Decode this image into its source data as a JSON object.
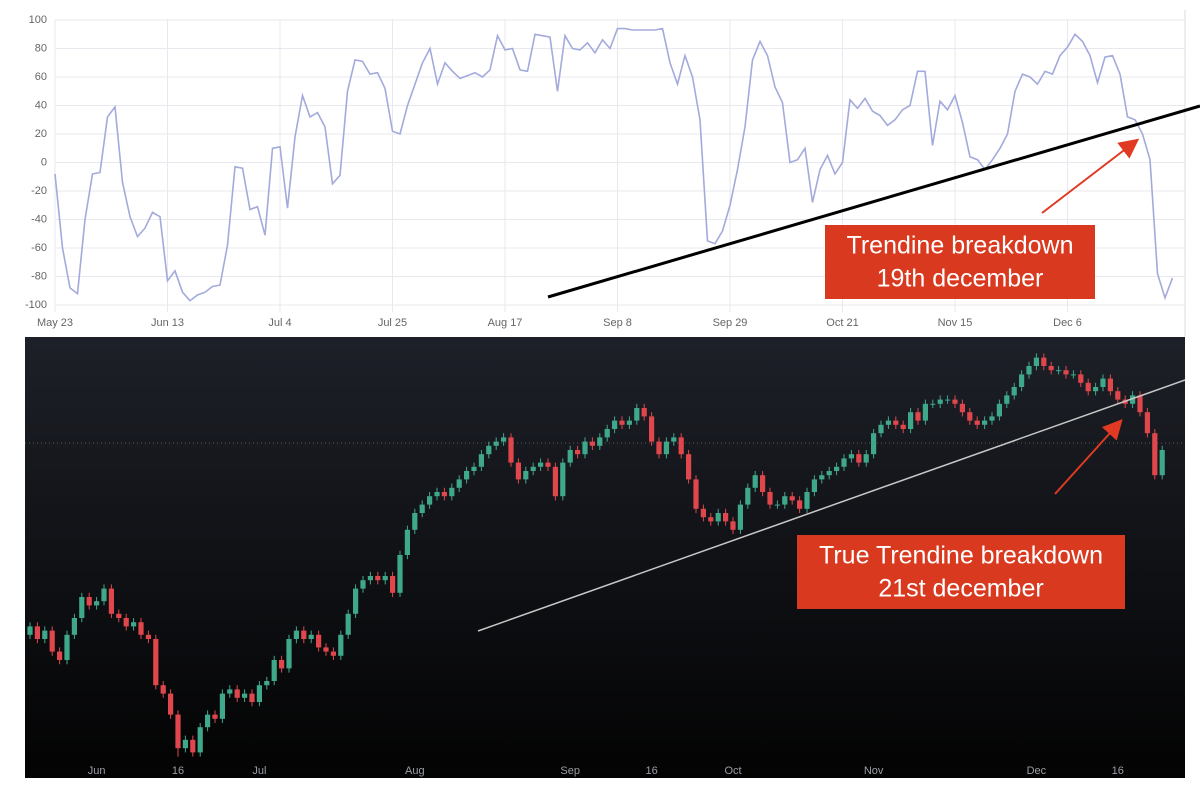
{
  "chart_data": [
    {
      "type": "line",
      "categories": [
        "May 23",
        null,
        null,
        null,
        null,
        null,
        null,
        null,
        null,
        null,
        null,
        null,
        null,
        null,
        null,
        "Jun 13",
        null,
        null,
        null,
        null,
        null,
        null,
        null,
        null,
        null,
        null,
        null,
        null,
        null,
        null,
        "Jul 4",
        null,
        null,
        null,
        null,
        null,
        null,
        null,
        null,
        null,
        null,
        null,
        null,
        null,
        null,
        "Jul 25",
        null,
        null,
        null,
        null,
        null,
        null,
        null,
        null,
        null,
        null,
        null,
        null,
        null,
        null,
        "Aug 17",
        null,
        null,
        null,
        null,
        null,
        null,
        null,
        null,
        null,
        null,
        null,
        null,
        null,
        null,
        "Sep 8",
        null,
        null,
        null,
        null,
        null,
        null,
        null,
        null,
        null,
        null,
        null,
        null,
        null,
        null,
        "Sep 29",
        null,
        null,
        null,
        null,
        null,
        null,
        null,
        null,
        null,
        null,
        null,
        null,
        null,
        null,
        "Oct 21",
        null,
        null,
        null,
        null,
        null,
        null,
        null,
        null,
        null,
        null,
        null,
        null,
        null,
        null,
        "Nov 15",
        null,
        null,
        null,
        null,
        null,
        null,
        null,
        null,
        null,
        null,
        null,
        null,
        null,
        null,
        "Dec 6",
        null,
        null,
        null,
        null,
        null,
        null,
        null,
        null,
        null,
        null,
        null,
        null,
        null,
        null
      ],
      "series": [
        {
          "color": "#a3aadc",
          "values": [
            -8,
            -60,
            -88,
            -92,
            -40,
            -8,
            -7,
            32,
            39,
            -14,
            -38,
            -52,
            -46,
            -35,
            -38,
            -83,
            -76,
            -91,
            -97,
            -93,
            -91,
            -87,
            -86,
            -58,
            -3,
            -4,
            -33,
            -31,
            -51,
            10,
            11,
            -32,
            18,
            47,
            32,
            35,
            25,
            -15,
            -9,
            50,
            72,
            71,
            62,
            63,
            52,
            22,
            20,
            40,
            55,
            70,
            80,
            55,
            70,
            64,
            59,
            61,
            63,
            60,
            65,
            89,
            79,
            80,
            65,
            64,
            90,
            89,
            88,
            50,
            89,
            80,
            79,
            84,
            77,
            86,
            80,
            94,
            94,
            93,
            93,
            93,
            93,
            94,
            70,
            55,
            75,
            60,
            30,
            -55,
            -57,
            -48,
            -30,
            -5,
            25,
            72,
            85,
            75,
            53,
            42,
            0,
            2,
            10,
            -28,
            -5,
            5,
            -8,
            0,
            44,
            38,
            45,
            36,
            33,
            26,
            30,
            37,
            40,
            64,
            64,
            12,
            43,
            37,
            47,
            28,
            4,
            2,
            -5,
            2,
            10,
            20,
            50,
            62,
            60,
            55,
            64,
            62,
            75,
            81,
            90,
            85,
            75,
            56,
            74,
            75,
            62,
            32,
            30,
            20,
            2,
            -78,
            -95,
            -81
          ]
        }
      ],
      "ylim": [
        -100,
        100
      ],
      "yticks": [
        -100,
        -80,
        -60,
        -40,
        -20,
        0,
        20,
        40,
        60,
        80,
        100
      ],
      "grid": true,
      "annotation": [
        "Trendine breakdown",
        "19th december"
      ]
    },
    {
      "type": "candlestick",
      "categories": [
        null,
        null,
        null,
        null,
        null,
        null,
        null,
        null,
        null,
        "Jun",
        null,
        null,
        null,
        null,
        null,
        null,
        null,
        null,
        null,
        null,
        "16",
        null,
        null,
        null,
        null,
        null,
        null,
        null,
        null,
        null,
        null,
        "Jul",
        null,
        null,
        null,
        null,
        null,
        null,
        null,
        null,
        null,
        null,
        null,
        null,
        null,
        null,
        null,
        null,
        null,
        null,
        null,
        null,
        "Aug",
        null,
        null,
        null,
        null,
        null,
        null,
        null,
        null,
        null,
        null,
        null,
        null,
        null,
        null,
        null,
        null,
        null,
        null,
        null,
        null,
        "Sep",
        null,
        null,
        null,
        null,
        null,
        null,
        null,
        null,
        null,
        null,
        "16",
        null,
        null,
        null,
        null,
        null,
        null,
        null,
        null,
        null,
        null,
        "Oct",
        null,
        null,
        null,
        null,
        null,
        null,
        null,
        null,
        null,
        null,
        null,
        null,
        null,
        null,
        null,
        null,
        null,
        null,
        "Nov",
        null,
        null,
        null,
        null,
        null,
        null,
        null,
        null,
        null,
        null,
        null,
        null,
        null,
        null,
        null,
        null,
        null,
        null,
        null,
        null,
        null,
        "Dec",
        null,
        null,
        null,
        null,
        null,
        null,
        null,
        null,
        null,
        null,
        "16",
        null,
        null,
        null,
        null,
        null,
        null
      ],
      "open": [
        31,
        33,
        30,
        32,
        27,
        25,
        31,
        35,
        40,
        38,
        39,
        42,
        36,
        35,
        33,
        34,
        31,
        30,
        19,
        17,
        12,
        4,
        6,
        3,
        9,
        12,
        11,
        17,
        18,
        16,
        17,
        15,
        19,
        20,
        25,
        23,
        30,
        32,
        30,
        31,
        28,
        27,
        26,
        31,
        36,
        42,
        44,
        45,
        44,
        45,
        41,
        50,
        56,
        60,
        62,
        64,
        65,
        64,
        66,
        68,
        70,
        71,
        74,
        76,
        77,
        78,
        72,
        68,
        70,
        71,
        72,
        71,
        64,
        72,
        75,
        74,
        77,
        76,
        78,
        80,
        82,
        81,
        82,
        85,
        83,
        77,
        74,
        77,
        78,
        74,
        68,
        61,
        59,
        58,
        60,
        58,
        56,
        62,
        66,
        69,
        65,
        62,
        62,
        64,
        63,
        61,
        65,
        68,
        69,
        70,
        71,
        73,
        74,
        72,
        74,
        79,
        81,
        82,
        81,
        80,
        84,
        82,
        86,
        86,
        87,
        87,
        86,
        84,
        82,
        81,
        82,
        83,
        86,
        88,
        90,
        93,
        95,
        97,
        95,
        94,
        94,
        93,
        93,
        91,
        89,
        90,
        92,
        89,
        87,
        86,
        88,
        84,
        79,
        69
      ],
      "high": [
        34,
        34,
        33,
        33,
        28,
        32,
        36,
        41,
        41,
        40,
        43,
        43,
        37,
        36,
        35,
        35,
        32,
        31,
        20,
        18,
        13,
        7,
        7,
        10,
        13,
        13,
        18,
        19,
        19,
        18,
        18,
        20,
        21,
        26,
        26,
        31,
        33,
        33,
        32,
        32,
        29,
        28,
        32,
        37,
        43,
        45,
        46,
        46,
        46,
        46,
        51,
        57,
        61,
        63,
        65,
        66,
        66,
        67,
        69,
        71,
        72,
        75,
        77,
        78,
        79,
        79,
        73,
        71,
        72,
        73,
        73,
        72,
        73,
        76,
        76,
        78,
        78,
        79,
        81,
        83,
        83,
        83,
        86,
        86,
        84,
        78,
        78,
        79,
        79,
        75,
        69,
        62,
        60,
        61,
        61,
        59,
        63,
        67,
        70,
        70,
        66,
        63,
        65,
        65,
        64,
        66,
        69,
        70,
        71,
        72,
        74,
        75,
        75,
        75,
        80,
        82,
        83,
        83,
        82,
        85,
        85,
        87,
        87,
        88,
        88,
        88,
        87,
        85,
        83,
        83,
        84,
        87,
        89,
        91,
        94,
        96,
        98,
        98,
        96,
        95,
        95,
        94,
        94,
        92,
        91,
        93,
        93,
        90,
        88,
        89,
        89,
        85,
        80,
        76
      ],
      "low": [
        30,
        29,
        29,
        26,
        24,
        24,
        30,
        34,
        37,
        37,
        38,
        35,
        34,
        32,
        32,
        30,
        29,
        18,
        16,
        11,
        2,
        3,
        2,
        2,
        8,
        10,
        10,
        16,
        15,
        15,
        14,
        14,
        18,
        19,
        22,
        22,
        29,
        29,
        29,
        27,
        26,
        25,
        25,
        30,
        35,
        41,
        43,
        43,
        43,
        40,
        40,
        49,
        55,
        59,
        61,
        63,
        63,
        63,
        65,
        67,
        69,
        70,
        73,
        75,
        76,
        71,
        67,
        67,
        69,
        70,
        70,
        63,
        63,
        71,
        73,
        73,
        75,
        75,
        77,
        79,
        80,
        80,
        81,
        82,
        76,
        73,
        73,
        76,
        73,
        67,
        60,
        58,
        57,
        57,
        57,
        55,
        55,
        61,
        65,
        64,
        61,
        61,
        61,
        62,
        60,
        60,
        64,
        67,
        68,
        69,
        70,
        72,
        71,
        71,
        73,
        78,
        80,
        80,
        79,
        79,
        81,
        81,
        85,
        85,
        86,
        85,
        83,
        81,
        80,
        80,
        81,
        82,
        85,
        87,
        89,
        92,
        94,
        94,
        93,
        93,
        92,
        92,
        90,
        88,
        88,
        89,
        88,
        86,
        85,
        85,
        83,
        78,
        68,
        68
      ],
      "close": [
        33,
        30,
        32,
        27,
        25,
        31,
        35,
        40,
        38,
        39,
        42,
        36,
        35,
        33,
        34,
        31,
        30,
        19,
        17,
        12,
        4,
        6,
        3,
        9,
        12,
        11,
        17,
        18,
        16,
        17,
        15,
        19,
        20,
        25,
        23,
        30,
        32,
        30,
        31,
        28,
        27,
        26,
        31,
        36,
        42,
        44,
        45,
        44,
        45,
        41,
        50,
        56,
        60,
        62,
        64,
        65,
        64,
        66,
        68,
        70,
        71,
        74,
        76,
        77,
        78,
        72,
        68,
        70,
        71,
        72,
        71,
        64,
        72,
        75,
        74,
        77,
        76,
        78,
        80,
        82,
        81,
        82,
        85,
        83,
        77,
        74,
        77,
        78,
        74,
        68,
        61,
        59,
        58,
        60,
        58,
        56,
        62,
        66,
        69,
        65,
        62,
        62,
        64,
        63,
        61,
        65,
        68,
        69,
        70,
        71,
        73,
        74,
        72,
        74,
        79,
        81,
        82,
        81,
        80,
        84,
        82,
        86,
        86,
        87,
        87,
        86,
        84,
        82,
        81,
        82,
        83,
        86,
        88,
        90,
        93,
        95,
        97,
        95,
        94,
        94,
        93,
        93,
        91,
        89,
        90,
        92,
        89,
        87,
        86,
        88,
        84,
        79,
        69,
        75
      ],
      "up_color": "#3fa78a",
      "down_color": "#e0474c",
      "ylim": [
        0,
        100
      ],
      "annotation": [
        "True Trendine breakdown",
        "21st december"
      ]
    }
  ]
}
